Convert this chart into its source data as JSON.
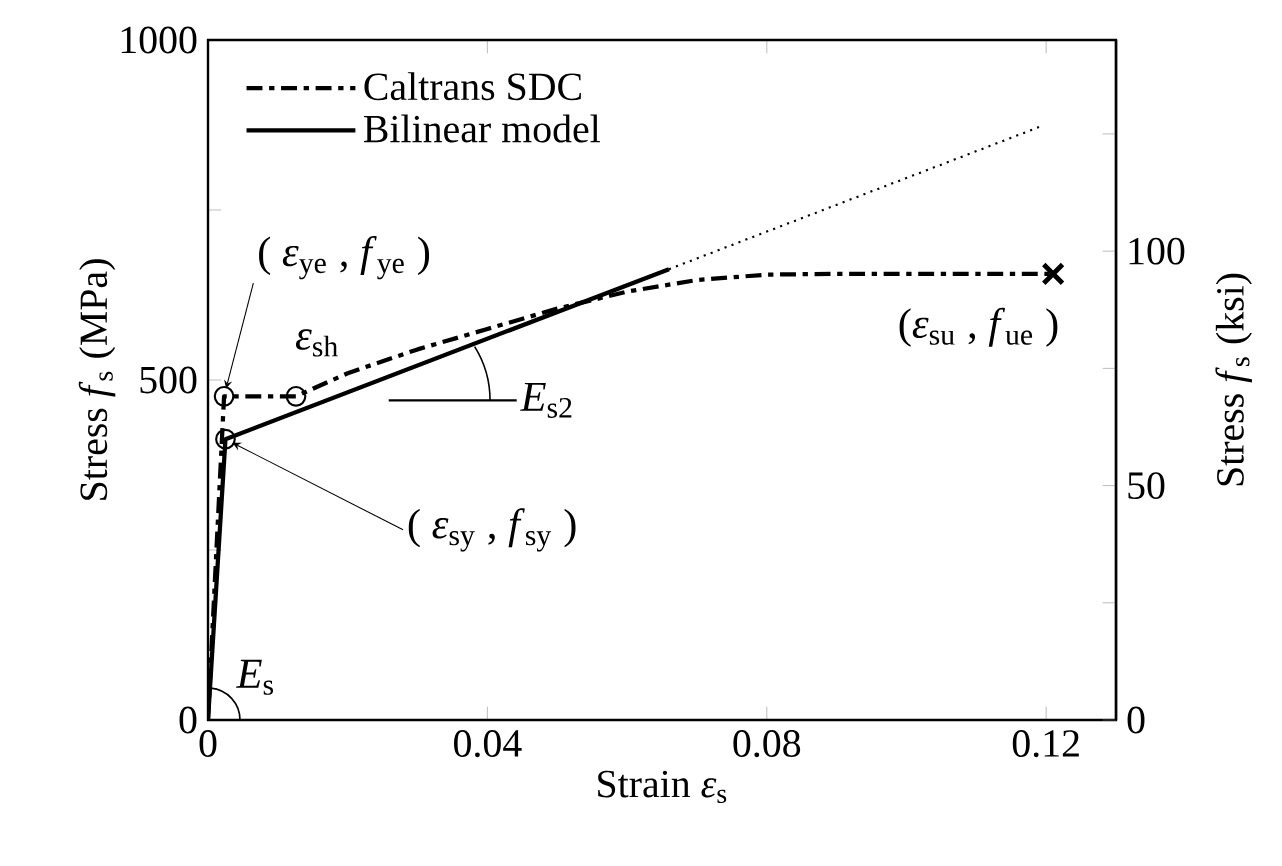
{
  "chart_data": {
    "type": "line",
    "xlabel": "Strain *ε*$_{s}$",
    "ylabel": "Stress *f*$_{s}$ (MPa)",
    "y2label": "Stress *f*$_{s}$ (ksi)",
    "xlim": [
      0,
      0.13
    ],
    "ylim": [
      0,
      1000
    ],
    "y2lim": [
      0,
      145.04
    ],
    "xticks": [
      0,
      0.04,
      0.08,
      0.12
    ],
    "yticks": [
      0,
      {
        "value": 250,
        "label": null
      },
      500,
      {
        "value": 750,
        "label": null
      },
      1000
    ],
    "y2ticks": [
      0,
      {
        "value": 25,
        "label": null
      },
      50,
      {
        "value": 75,
        "label": null
      },
      100,
      {
        "value": 125,
        "label": null
      }
    ],
    "legend": "top left",
    "series": [
      {
        "name": "Caltrans SDC",
        "color": "#000000",
        "line_style": "dashdot",
        "marker": "none",
        "x": [
          0,
          0.0023,
          0.0126,
          0.02,
          0.03,
          0.04,
          0.05,
          0.06,
          0.07,
          0.08,
          0.09,
          0.1,
          0.121
        ],
        "values": [
          0,
          476,
          476,
          510,
          545,
          575,
          605,
          630,
          647,
          655,
          656,
          656,
          656
        ]
      },
      {
        "name": "Bilinear model",
        "color": "#000000",
        "line_style": "solid",
        "marker": "none",
        "x": [
          0,
          0.0025,
          0.066
        ],
        "values": [
          0,
          413,
          663
        ]
      },
      {
        "color": "#000000",
        "line_style": "dotted",
        "marker": "none",
        "x": [
          0.066,
          0.119
        ],
        "values": [
          663,
          872
        ]
      },
      {
        "type": "scatter",
        "color": "#000000",
        "marker": "circle",
        "x": [
          0.0023,
          0.0126,
          0.0025
        ],
        "values": [
          476,
          476,
          413
        ]
      },
      {
        "type": "scatter",
        "color": "#000000",
        "marker": "cross",
        "x": [
          0.121
        ],
        "values": [
          656
        ]
      }
    ],
    "annotations": [
      {
        "text": "( *ε*$_{ye}$ , *f*$_{ye}$ )",
        "x": 0.0023,
        "y": 476
      },
      {
        "text": "*ε*$_{sh}$",
        "x": 0.0126,
        "y": 476
      },
      {
        "text": "( *ε*$_{sy}$ , *f*$_{sy}$ )",
        "x": 0.0025,
        "y": 413
      },
      {
        "text": "(*ε*$_{su}$ , *f*$_{ue}$ )",
        "x": 0.121,
        "y": 656
      },
      {
        "text": "*E*$_{s}$",
        "x": 0,
        "y": 0
      },
      "*E*$_{s2}$"
    ]
  }
}
